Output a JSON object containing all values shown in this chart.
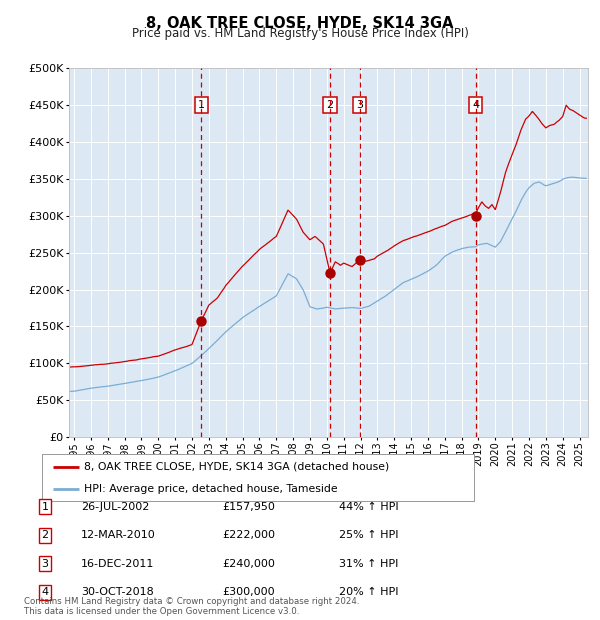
{
  "title": "8, OAK TREE CLOSE, HYDE, SK14 3GA",
  "subtitle": "Price paid vs. HM Land Registry's House Price Index (HPI)",
  "background_color": "#dce9f5",
  "outer_bg_color": "#ffffff",
  "grid_color": "#ffffff",
  "red_line_color": "#cc0000",
  "blue_line_color": "#7aadd4",
  "vline_color": "#cc0000",
  "sale_marker_color": "#aa0000",
  "ylim": [
    0,
    500000
  ],
  "yticks": [
    0,
    50000,
    100000,
    150000,
    200000,
    250000,
    300000,
    350000,
    400000,
    450000,
    500000
  ],
  "xlim_start": 1994.7,
  "xlim_end": 2025.5,
  "sales": [
    {
      "num": 1,
      "date": "26-JUL-2002",
      "price": 157950,
      "pct": "44% ↑ HPI",
      "year": 2002.56
    },
    {
      "num": 2,
      "date": "12-MAR-2010",
      "price": 222000,
      "pct": "25% ↑ HPI",
      "year": 2010.19
    },
    {
      "num": 3,
      "date": "16-DEC-2011",
      "price": 240000,
      "pct": "31% ↑ HPI",
      "year": 2011.96
    },
    {
      "num": 4,
      "date": "30-OCT-2018",
      "price": 300000,
      "pct": "20% ↑ HPI",
      "year": 2018.83
    }
  ],
  "legend_line1": "8, OAK TREE CLOSE, HYDE, SK14 3GA (detached house)",
  "legend_line2": "HPI: Average price, detached house, Tameside",
  "footer1": "Contains HM Land Registry data © Crown copyright and database right 2024.",
  "footer2": "This data is licensed under the Open Government Licence v3.0.",
  "red_waypoints": [
    [
      1995.0,
      95000
    ],
    [
      1996.0,
      98000
    ],
    [
      1997.0,
      100000
    ],
    [
      1998.0,
      103000
    ],
    [
      1999.0,
      106000
    ],
    [
      2000.0,
      110000
    ],
    [
      2001.0,
      118000
    ],
    [
      2002.0,
      125000
    ],
    [
      2002.56,
      157950
    ],
    [
      2003.0,
      178000
    ],
    [
      2003.5,
      188000
    ],
    [
      2004.0,
      205000
    ],
    [
      2005.0,
      232000
    ],
    [
      2006.0,
      255000
    ],
    [
      2007.0,
      272000
    ],
    [
      2007.7,
      308000
    ],
    [
      2008.2,
      296000
    ],
    [
      2008.6,
      278000
    ],
    [
      2009.0,
      268000
    ],
    [
      2009.3,
      273000
    ],
    [
      2009.8,
      262000
    ],
    [
      2010.19,
      222000
    ],
    [
      2010.5,
      238000
    ],
    [
      2010.8,
      233000
    ],
    [
      2011.0,
      236000
    ],
    [
      2011.5,
      231000
    ],
    [
      2011.96,
      240000
    ],
    [
      2012.3,
      237000
    ],
    [
      2012.8,
      240000
    ],
    [
      2013.0,
      244000
    ],
    [
      2013.5,
      250000
    ],
    [
      2014.0,
      258000
    ],
    [
      2014.5,
      264000
    ],
    [
      2015.0,
      268000
    ],
    [
      2015.5,
      272000
    ],
    [
      2016.0,
      276000
    ],
    [
      2016.5,
      280000
    ],
    [
      2017.0,
      284000
    ],
    [
      2017.5,
      290000
    ],
    [
      2018.0,
      294000
    ],
    [
      2018.5,
      298000
    ],
    [
      2018.83,
      300000
    ],
    [
      2019.0,
      308000
    ],
    [
      2019.2,
      316000
    ],
    [
      2019.4,
      310000
    ],
    [
      2019.6,
      307000
    ],
    [
      2019.8,
      312000
    ],
    [
      2020.0,
      305000
    ],
    [
      2020.3,
      328000
    ],
    [
      2020.6,
      355000
    ],
    [
      2020.9,
      375000
    ],
    [
      2021.2,
      392000
    ],
    [
      2021.5,
      412000
    ],
    [
      2021.8,
      428000
    ],
    [
      2022.0,
      432000
    ],
    [
      2022.2,
      438000
    ],
    [
      2022.5,
      430000
    ],
    [
      2022.8,
      420000
    ],
    [
      2023.0,
      415000
    ],
    [
      2023.2,
      418000
    ],
    [
      2023.5,
      420000
    ],
    [
      2023.8,
      425000
    ],
    [
      2024.0,
      430000
    ],
    [
      2024.2,
      445000
    ],
    [
      2024.4,
      440000
    ],
    [
      2024.6,
      438000
    ],
    [
      2024.8,
      435000
    ],
    [
      2025.0,
      432000
    ],
    [
      2025.3,
      428000
    ]
  ],
  "blue_waypoints": [
    [
      1995.0,
      62000
    ],
    [
      1996.0,
      66000
    ],
    [
      1997.0,
      69000
    ],
    [
      1998.0,
      73000
    ],
    [
      1999.0,
      77000
    ],
    [
      2000.0,
      82000
    ],
    [
      2001.0,
      90000
    ],
    [
      2002.0,
      100000
    ],
    [
      2003.0,
      120000
    ],
    [
      2004.0,
      143000
    ],
    [
      2005.0,
      163000
    ],
    [
      2006.0,
      178000
    ],
    [
      2007.0,
      192000
    ],
    [
      2007.7,
      222000
    ],
    [
      2008.2,
      215000
    ],
    [
      2008.6,
      200000
    ],
    [
      2009.0,
      177000
    ],
    [
      2009.4,
      174000
    ],
    [
      2009.8,
      175000
    ],
    [
      2010.0,
      176000
    ],
    [
      2010.5,
      174000
    ],
    [
      2011.0,
      175000
    ],
    [
      2011.5,
      176000
    ],
    [
      2012.0,
      175000
    ],
    [
      2012.5,
      178000
    ],
    [
      2013.0,
      185000
    ],
    [
      2013.5,
      192000
    ],
    [
      2014.0,
      201000
    ],
    [
      2014.5,
      210000
    ],
    [
      2015.0,
      215000
    ],
    [
      2015.5,
      220000
    ],
    [
      2016.0,
      226000
    ],
    [
      2016.5,
      234000
    ],
    [
      2017.0,
      246000
    ],
    [
      2017.5,
      252000
    ],
    [
      2018.0,
      256000
    ],
    [
      2018.5,
      258000
    ],
    [
      2018.83,
      258000
    ],
    [
      2019.0,
      261000
    ],
    [
      2019.5,
      263000
    ],
    [
      2020.0,
      258000
    ],
    [
      2020.3,
      265000
    ],
    [
      2020.6,
      278000
    ],
    [
      2020.9,
      292000
    ],
    [
      2021.2,
      305000
    ],
    [
      2021.5,
      320000
    ],
    [
      2021.8,
      332000
    ],
    [
      2022.0,
      338000
    ],
    [
      2022.3,
      344000
    ],
    [
      2022.6,
      346000
    ],
    [
      2022.9,
      342000
    ],
    [
      2023.0,
      341000
    ],
    [
      2023.3,
      343000
    ],
    [
      2023.6,
      345000
    ],
    [
      2023.9,
      348000
    ],
    [
      2024.0,
      350000
    ],
    [
      2024.3,
      352000
    ],
    [
      2024.6,
      353000
    ],
    [
      2024.9,
      352000
    ],
    [
      2025.3,
      351000
    ]
  ]
}
